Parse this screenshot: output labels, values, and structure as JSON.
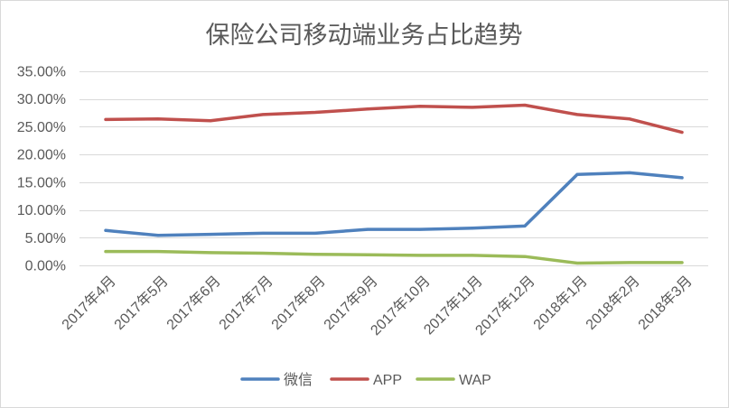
{
  "chart_data": {
    "type": "line",
    "title": "保险公司移动端业务占比趋势",
    "xlabel": "",
    "ylabel": "",
    "categories": [
      "2017年4月",
      "2017年5月",
      "2017年6月",
      "2017年7月",
      "2017年8月",
      "2017年9月",
      "2017年10月",
      "2017年11月",
      "2017年12月",
      "2018年1月",
      "2018年2月",
      "2018年3月"
    ],
    "ylim": [
      0,
      35
    ],
    "yticks": [
      0,
      5,
      10,
      15,
      20,
      25,
      30,
      35
    ],
    "ytick_labels": [
      "0.00%",
      "5.00%",
      "10.00%",
      "15.00%",
      "20.00%",
      "25.00%",
      "30.00%",
      "35.00%"
    ],
    "grid": true,
    "legend": "bottom",
    "series": [
      {
        "name": "微信",
        "color": "#4F81BD",
        "values": [
          6.3,
          5.4,
          5.6,
          5.8,
          5.8,
          6.5,
          6.5,
          6.7,
          7.1,
          16.4,
          16.7,
          15.8
        ]
      },
      {
        "name": "APP",
        "color": "#C0504D",
        "values": [
          26.3,
          26.4,
          26.1,
          27.2,
          27.6,
          28.2,
          28.7,
          28.5,
          28.9,
          27.2,
          26.4,
          24.0
        ]
      },
      {
        "name": "WAP",
        "color": "#9BBB59",
        "values": [
          2.5,
          2.5,
          2.3,
          2.2,
          2.0,
          1.9,
          1.8,
          1.8,
          1.6,
          0.4,
          0.5,
          0.5
        ]
      }
    ]
  }
}
